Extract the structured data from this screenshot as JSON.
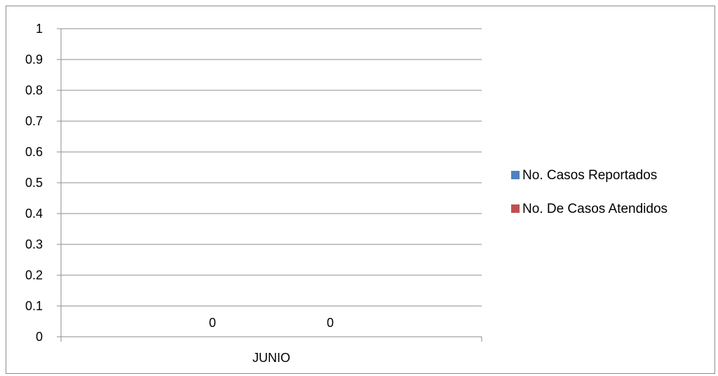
{
  "chart_data": {
    "type": "bar",
    "title": "",
    "xlabel": "",
    "ylabel": "",
    "categories": [
      "JUNIO"
    ],
    "series": [
      {
        "name": "No. Casos Reportados",
        "values": [
          0
        ],
        "color": "#4f81bd"
      },
      {
        "name": "No. De Casos Atendidos",
        "values": [
          0
        ],
        "color": "#c0504d"
      }
    ],
    "ylim": [
      0,
      1
    ],
    "yticks": [
      "0",
      "0.1",
      "0.2",
      "0.3",
      "0.4",
      "0.5",
      "0.6",
      "0.7",
      "0.8",
      "0.9",
      "1"
    ],
    "data_labels": [
      "0",
      "0"
    ],
    "grid": true,
    "legend_position": "right"
  }
}
